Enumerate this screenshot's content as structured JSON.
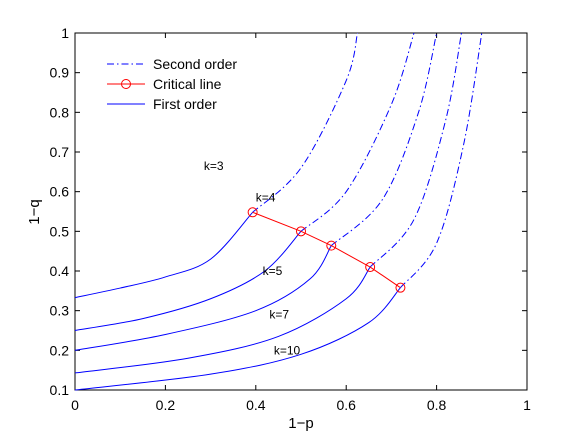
{
  "chart_data": {
    "type": "line",
    "xlabel": "1−p",
    "ylabel": "1−q",
    "xlim": [
      0,
      1
    ],
    "ylim": [
      0.1,
      1
    ],
    "xticks": [
      "0",
      "0.2",
      "0.4",
      "0.6",
      "0.8",
      "1"
    ],
    "yticks": [
      "0.1",
      "0.2",
      "0.3",
      "0.4",
      "0.5",
      "0.6",
      "0.7",
      "0.8",
      "0.9",
      "1"
    ],
    "grid": false,
    "legend_position": "top-left",
    "legend": [
      {
        "label": "Second order",
        "style": "dash-dot",
        "color": "#0000ff"
      },
      {
        "label": "Critical line",
        "style": "line-circle-marker",
        "color": "#ff0000"
      },
      {
        "label": "First order",
        "style": "solid",
        "color": "#0000ff"
      }
    ],
    "series": [
      {
        "k_label": "k=3",
        "k": 3,
        "first_order": [
          [
            0,
            0.333
          ],
          [
            0.1,
            0.357
          ],
          [
            0.2,
            0.385
          ],
          [
            0.3,
            0.43
          ],
          [
            0.393,
            0.548
          ]
        ],
        "second_order": [
          [
            0.393,
            0.548
          ],
          [
            0.5,
            0.66
          ],
          [
            0.6,
            0.88
          ],
          [
            0.625,
            1.0
          ]
        ]
      },
      {
        "k_label": "k=4",
        "k": 4,
        "first_order": [
          [
            0,
            0.25
          ],
          [
            0.15,
            0.28
          ],
          [
            0.3,
            0.33
          ],
          [
            0.42,
            0.4
          ],
          [
            0.5,
            0.5
          ]
        ],
        "second_order": [
          [
            0.5,
            0.5
          ],
          [
            0.6,
            0.6
          ],
          [
            0.7,
            0.82
          ],
          [
            0.75,
            1.0
          ]
        ]
      },
      {
        "k_label": "k=5",
        "k": 5,
        "first_order": [
          [
            0,
            0.2
          ],
          [
            0.2,
            0.24
          ],
          [
            0.4,
            0.3
          ],
          [
            0.52,
            0.38
          ],
          [
            0.567,
            0.464
          ]
        ],
        "second_order": [
          [
            0.567,
            0.464
          ],
          [
            0.68,
            0.58
          ],
          [
            0.76,
            0.8
          ],
          [
            0.8,
            1.0
          ]
        ]
      },
      {
        "k_label": "k=7",
        "k": 7,
        "first_order": [
          [
            0,
            0.143
          ],
          [
            0.25,
            0.18
          ],
          [
            0.45,
            0.235
          ],
          [
            0.6,
            0.33
          ],
          [
            0.653,
            0.41
          ]
        ],
        "second_order": [
          [
            0.653,
            0.41
          ],
          [
            0.75,
            0.53
          ],
          [
            0.82,
            0.78
          ],
          [
            0.855,
            1.0
          ]
        ]
      },
      {
        "k_label": "k=10",
        "k": 10,
        "first_order": [
          [
            0,
            0.1
          ],
          [
            0.3,
            0.14
          ],
          [
            0.5,
            0.19
          ],
          [
            0.65,
            0.27
          ],
          [
            0.72,
            0.358
          ]
        ],
        "second_order": [
          [
            0.72,
            0.358
          ],
          [
            0.8,
            0.47
          ],
          [
            0.86,
            0.72
          ],
          [
            0.9,
            1.0
          ]
        ]
      }
    ],
    "critical_line": [
      [
        0.393,
        0.548
      ],
      [
        0.5,
        0.5
      ],
      [
        0.567,
        0.464
      ],
      [
        0.653,
        0.41
      ],
      [
        0.72,
        0.358
      ]
    ],
    "colors": {
      "curves": "#0000ff",
      "critical": "#ff0000",
      "axes": "#000000"
    }
  }
}
